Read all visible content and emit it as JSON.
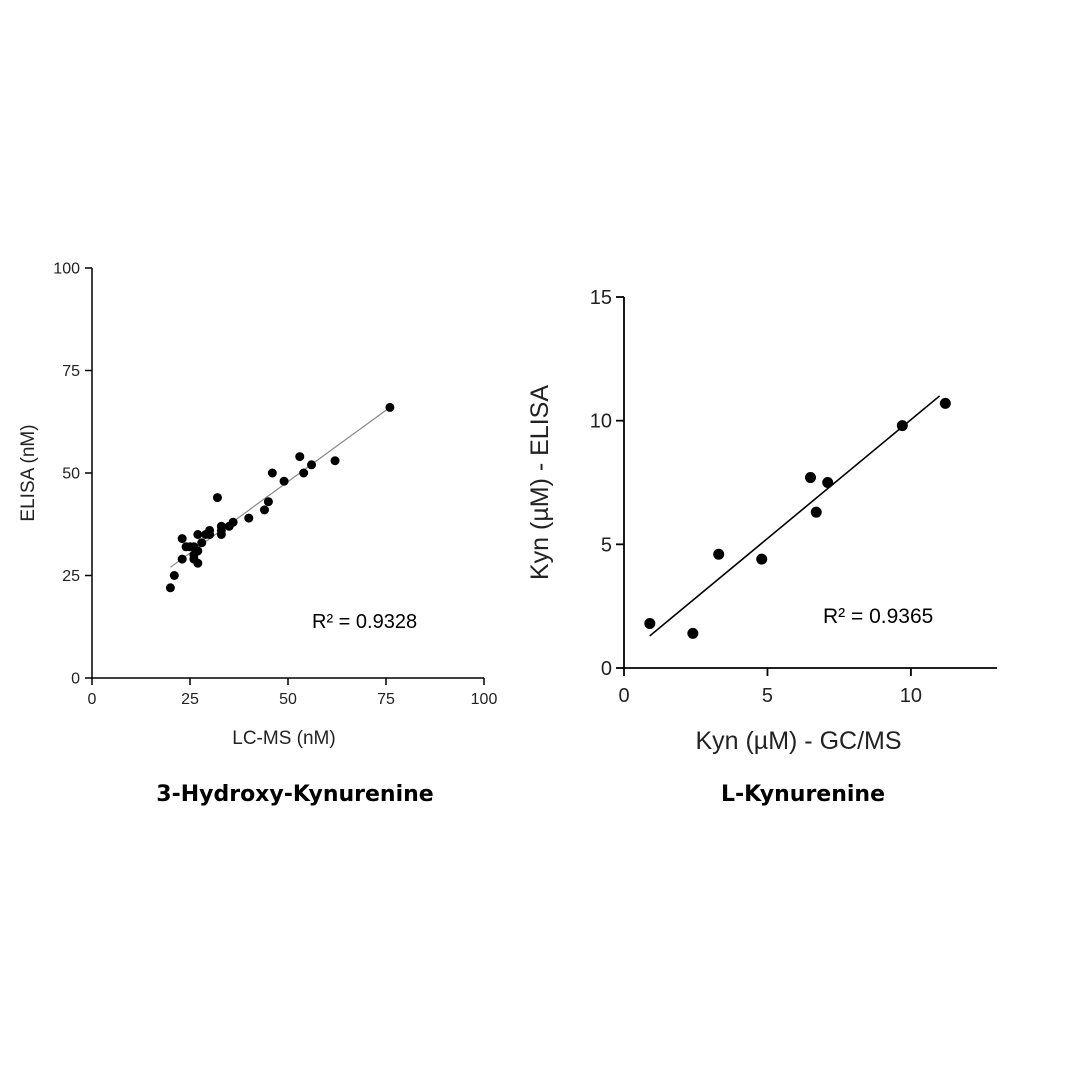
{
  "chart_data": [
    {
      "type": "scatter",
      "caption": "3-Hydroxy-Kynurenine",
      "xlabel": "LC-MS (nM)",
      "ylabel": "ELISA (nM)",
      "xlim": [
        0,
        100
      ],
      "ylim": [
        0,
        100
      ],
      "xticks": [
        0,
        25,
        50,
        75,
        100
      ],
      "yticks": [
        0,
        25,
        50,
        75,
        100
      ],
      "xtick_labels": [
        "0",
        "25",
        "50",
        "75",
        "100"
      ],
      "ytick_labels": [
        "0",
        "25",
        "50",
        "75",
        "100"
      ],
      "annotation": "R² = 0.9328",
      "trendline": {
        "x": [
          20,
          76
        ],
        "y": [
          27,
          66
        ]
      },
      "points": [
        {
          "x": 20,
          "y": 22
        },
        {
          "x": 21,
          "y": 25
        },
        {
          "x": 23,
          "y": 29
        },
        {
          "x": 23,
          "y": 34
        },
        {
          "x": 24,
          "y": 32
        },
        {
          "x": 25,
          "y": 32
        },
        {
          "x": 26,
          "y": 32
        },
        {
          "x": 26,
          "y": 30
        },
        {
          "x": 26,
          "y": 29
        },
        {
          "x": 27,
          "y": 28
        },
        {
          "x": 27,
          "y": 31
        },
        {
          "x": 27,
          "y": 35
        },
        {
          "x": 28,
          "y": 33
        },
        {
          "x": 29,
          "y": 35
        },
        {
          "x": 30,
          "y": 35
        },
        {
          "x": 30,
          "y": 36
        },
        {
          "x": 32,
          "y": 44
        },
        {
          "x": 33,
          "y": 35
        },
        {
          "x": 33,
          "y": 36
        },
        {
          "x": 33,
          "y": 37
        },
        {
          "x": 35,
          "y": 37
        },
        {
          "x": 36,
          "y": 38
        },
        {
          "x": 40,
          "y": 39
        },
        {
          "x": 44,
          "y": 41
        },
        {
          "x": 45,
          "y": 43
        },
        {
          "x": 46,
          "y": 50
        },
        {
          "x": 49,
          "y": 48
        },
        {
          "x": 53,
          "y": 54
        },
        {
          "x": 54,
          "y": 50
        },
        {
          "x": 56,
          "y": 52
        },
        {
          "x": 62,
          "y": 53
        },
        {
          "x": 76,
          "y": 66
        }
      ]
    },
    {
      "type": "scatter",
      "caption": "L-Kynurenine",
      "xlabel": "Kyn (µM) - GC/MS",
      "ylabel": "Kyn (µM) - ELISA",
      "xlim": [
        0,
        13
      ],
      "ylim": [
        0,
        15
      ],
      "xticks": [
        0,
        5,
        10
      ],
      "yticks": [
        0,
        5,
        10,
        15
      ],
      "xtick_labels": [
        "0",
        "5",
        "10"
      ],
      "ytick_labels": [
        "0",
        "5",
        "10",
        "15"
      ],
      "annotation": "R² = 0.9365",
      "trendline": {
        "x": [
          0.9,
          11.0
        ],
        "y": [
          1.3,
          11.0
        ]
      },
      "points": [
        {
          "x": 0.9,
          "y": 1.8
        },
        {
          "x": 2.4,
          "y": 1.4
        },
        {
          "x": 3.3,
          "y": 4.6
        },
        {
          "x": 4.8,
          "y": 4.4
        },
        {
          "x": 6.5,
          "y": 7.7
        },
        {
          "x": 6.7,
          "y": 6.3
        },
        {
          "x": 7.1,
          "y": 7.5
        },
        {
          "x": 9.7,
          "y": 9.8
        },
        {
          "x": 11.2,
          "y": 10.7
        }
      ]
    }
  ]
}
